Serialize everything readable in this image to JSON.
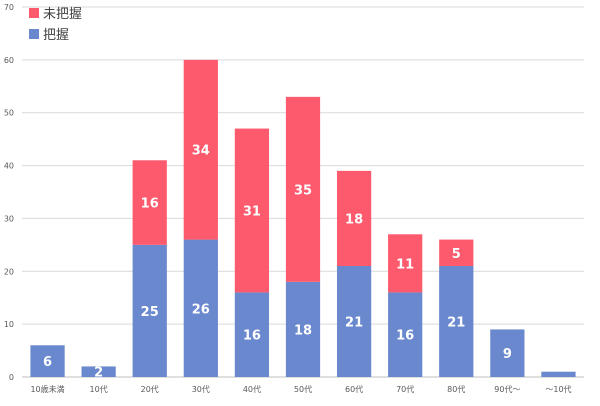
{
  "chart_data": {
    "type": "bar",
    "stacked": true,
    "categories": [
      "10歳未満",
      "10代",
      "20代",
      "30代",
      "40代",
      "50代",
      "60代",
      "70代",
      "80代",
      "90代〜",
      "〜10代"
    ],
    "series": [
      {
        "name": "把握",
        "color": "#6a88cd",
        "values": [
          6,
          2,
          25,
          26,
          16,
          18,
          21,
          16,
          21,
          9,
          1
        ]
      },
      {
        "name": "未把握",
        "color": "#fe5a6d",
        "values": [
          0,
          0,
          16,
          34,
          31,
          35,
          18,
          11,
          5,
          0,
          0
        ]
      }
    ],
    "data_labels": {
      "把握": [
        "6",
        "2",
        "25",
        "26",
        "16",
        "18",
        "21",
        "16",
        "21",
        "9",
        ""
      ],
      "未把握": [
        "",
        "",
        "16",
        "34",
        "31",
        "35",
        "18",
        "11",
        "5",
        "",
        ""
      ]
    },
    "ylim": [
      0,
      70
    ],
    "yticks": [
      "0",
      "10",
      "20",
      "30",
      "40",
      "50",
      "60",
      "70"
    ],
    "grid": true,
    "legend_position": "top-left",
    "legend": [
      "未把握",
      "把握"
    ],
    "title": "",
    "xlabel": "",
    "ylabel": ""
  }
}
